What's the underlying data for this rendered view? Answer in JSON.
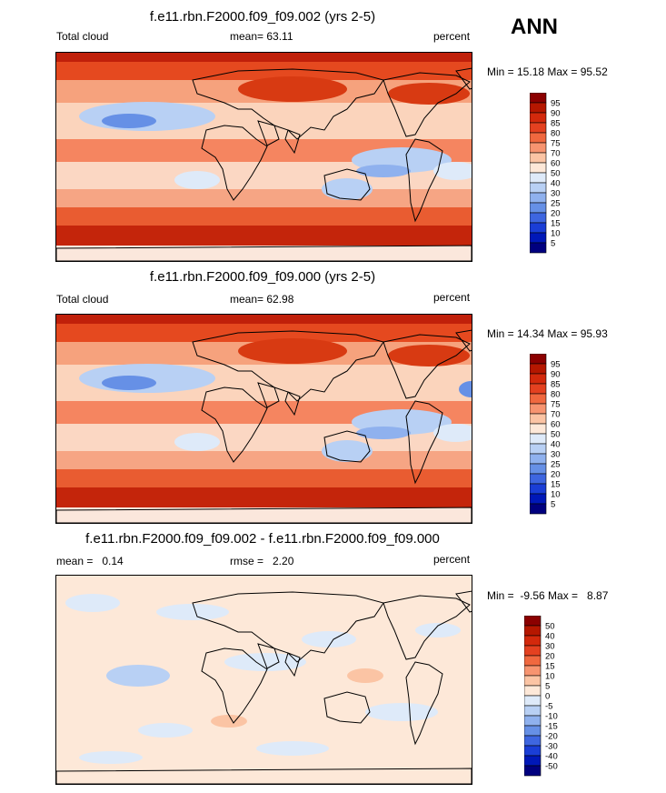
{
  "season": "ANN",
  "colors": {
    "warm_max": "#8b0000",
    "warm_mid": "#e03a1c",
    "warm_light": "#f8b898",
    "neutral": "#fde8d8",
    "cool_light": "#c6dcf5",
    "cool_mid": "#6b93e6",
    "cool_max": "#00007f",
    "coast": "#000000"
  },
  "chart_data": [
    {
      "type": "heatmap",
      "title": "f.e11.rbn.F2000.f09_f09.002 (yrs 2-5)",
      "left_label": "Total cloud",
      "center_label": "mean=  63.11",
      "right_label": "percent",
      "minmax": "Min =  15.18 Max =  95.52",
      "colorbar_levels": [
        "95",
        "90",
        "85",
        "80",
        "75",
        "70",
        "60",
        "50",
        "40",
        "30",
        "25",
        "20",
        "15",
        "10",
        "5"
      ],
      "colorbar_colors": [
        "#8b0000",
        "#b51700",
        "#d3290c",
        "#e44120",
        "#f0683f",
        "#f79470",
        "#fbc4a4",
        "#fde8d8",
        "#deeaf9",
        "#b8d0f4",
        "#8fb1ee",
        "#6690e6",
        "#3e66e0",
        "#1a3ed6",
        "#0018b8",
        "#00007f"
      ]
    },
    {
      "type": "heatmap",
      "title": "f.e11.rbn.F2000.f09_f09.000 (yrs 2-5)",
      "left_label": "Total cloud",
      "center_label": "mean=  62.98",
      "right_label": "percent",
      "minmax": "Min =  14.34 Max =  95.93",
      "colorbar_levels": [
        "95",
        "90",
        "85",
        "80",
        "75",
        "70",
        "60",
        "50",
        "40",
        "30",
        "25",
        "20",
        "15",
        "10",
        "5"
      ],
      "colorbar_colors": [
        "#8b0000",
        "#b51700",
        "#d3290c",
        "#e44120",
        "#f0683f",
        "#f79470",
        "#fbc4a4",
        "#fde8d8",
        "#deeaf9",
        "#b8d0f4",
        "#8fb1ee",
        "#6690e6",
        "#3e66e0",
        "#1a3ed6",
        "#0018b8",
        "#00007f"
      ]
    },
    {
      "type": "heatmap",
      "title": "f.e11.rbn.F2000.f09_f09.002 - f.e11.rbn.F2000.f09_f09.000",
      "left_label": "mean =   0.14",
      "center_label": "rmse =   2.20",
      "right_label": "percent",
      "minmax": "Min =  -9.56 Max =   8.87",
      "colorbar_levels": [
        "50",
        "40",
        "30",
        "20",
        "15",
        "10",
        "5",
        "0",
        "-5",
        "-10",
        "-15",
        "-20",
        "-30",
        "-40",
        "-50"
      ],
      "colorbar_colors": [
        "#8b0000",
        "#b51700",
        "#d3290c",
        "#e44120",
        "#f0683f",
        "#f79470",
        "#fbc4a4",
        "#fde8d8",
        "#deeaf9",
        "#b8d0f4",
        "#8fb1ee",
        "#6690e6",
        "#3e66e0",
        "#1a3ed6",
        "#0018b8",
        "#00007f"
      ]
    }
  ]
}
